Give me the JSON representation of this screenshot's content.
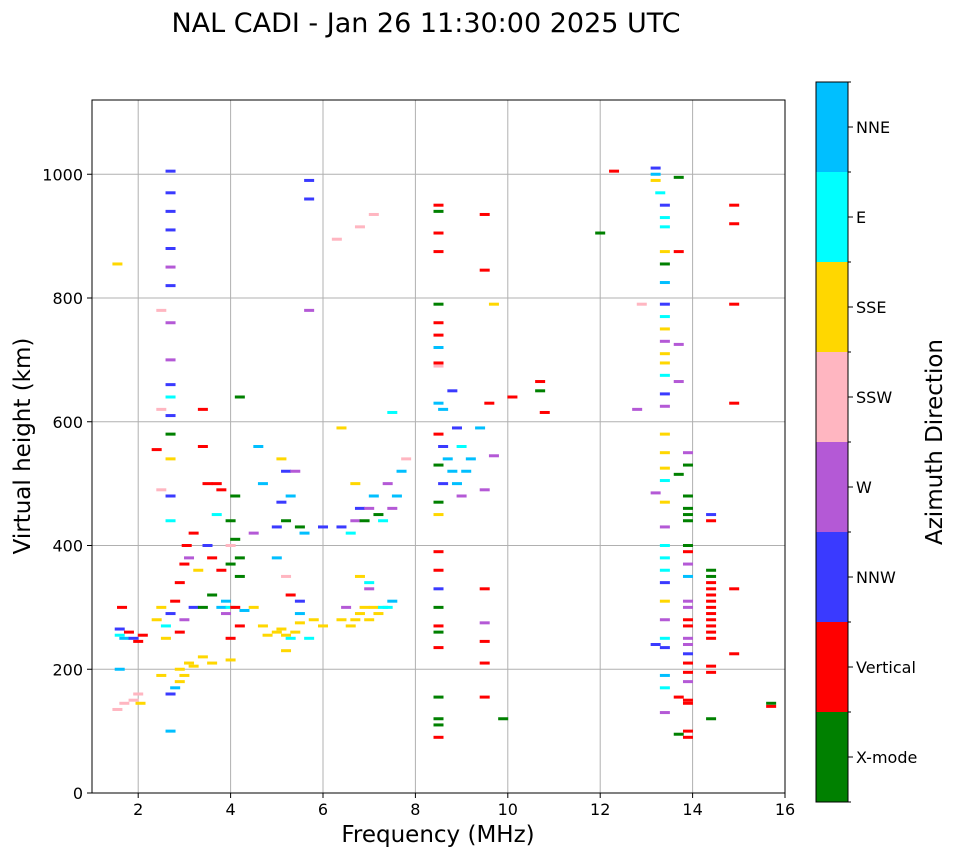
{
  "chart_data": {
    "type": "scatter",
    "title": "NAL CADI - Jan 26 11:30:00 2025 UTC",
    "xlabel": "Frequency (MHz)",
    "ylabel": "Virtual height (km)",
    "xlim": [
      1,
      16
    ],
    "ylim": [
      0,
      1120
    ],
    "xticks": [
      2,
      4,
      6,
      8,
      10,
      12,
      14,
      16
    ],
    "yticks": [
      0,
      200,
      400,
      600,
      800,
      1000
    ],
    "grid": true,
    "colorbar": {
      "title": "Azimuth Direction",
      "categories": [
        {
          "name": "X-mode",
          "color": "#008000"
        },
        {
          "name": "Vertical",
          "color": "#ff0000"
        },
        {
          "name": "NNW",
          "color": "#3a3aff"
        },
        {
          "name": "W",
          "color": "#b459d6"
        },
        {
          "name": "SSW",
          "color": "#ffb6c1"
        },
        {
          "name": "SSE",
          "color": "#ffd700"
        },
        {
          "name": "E",
          "color": "#00ffff"
        },
        {
          "name": "NNE",
          "color": "#00bfff"
        }
      ]
    },
    "echoes": [
      [
        1.6,
        265,
        "NNW"
      ],
      [
        1.6,
        255,
        "E"
      ],
      [
        1.7,
        250,
        "NNE"
      ],
      [
        1.8,
        260,
        "Vertical"
      ],
      [
        1.9,
        250,
        "NNW"
      ],
      [
        2.0,
        245,
        "Vertical"
      ],
      [
        2.1,
        255,
        "Vertical"
      ],
      [
        1.6,
        200,
        "NNE"
      ],
      [
        1.7,
        145,
        "SSW"
      ],
      [
        1.9,
        150,
        "SSW"
      ],
      [
        2.0,
        160,
        "SSW"
      ],
      [
        2.05,
        145,
        "SSE"
      ],
      [
        1.55,
        855,
        "SSE"
      ],
      [
        1.55,
        135,
        "SSW"
      ],
      [
        1.65,
        300,
        "Vertical"
      ],
      [
        2.4,
        280,
        "SSE"
      ],
      [
        2.5,
        300,
        "SSE"
      ],
      [
        2.6,
        270,
        "E"
      ],
      [
        2.7,
        290,
        "NNW"
      ],
      [
        2.8,
        310,
        "Vertical"
      ],
      [
        2.9,
        340,
        "Vertical"
      ],
      [
        3.0,
        370,
        "Vertical"
      ],
      [
        3.1,
        380,
        "W"
      ],
      [
        3.05,
        400,
        "Vertical"
      ],
      [
        3.2,
        420,
        "Vertical"
      ],
      [
        3.2,
        300,
        "NNW"
      ],
      [
        3.0,
        280,
        "W"
      ],
      [
        2.9,
        260,
        "Vertical"
      ],
      [
        2.6,
        250,
        "SSE"
      ],
      [
        3.3,
        360,
        "SSE"
      ],
      [
        3.4,
        300,
        "X-mode"
      ],
      [
        3.6,
        320,
        "X-mode"
      ],
      [
        3.8,
        300,
        "NNE"
      ],
      [
        3.9,
        290,
        "W"
      ],
      [
        4.0,
        300,
        "E"
      ],
      [
        3.9,
        310,
        "NNE"
      ],
      [
        2.9,
        200,
        "SSE"
      ],
      [
        3.0,
        190,
        "SSE"
      ],
      [
        3.1,
        210,
        "SSE"
      ],
      [
        3.2,
        205,
        "SSE"
      ],
      [
        3.4,
        220,
        "SSE"
      ],
      [
        3.6,
        210,
        "SSE"
      ],
      [
        4.0,
        215,
        "SSE"
      ],
      [
        2.5,
        190,
        "SSE"
      ],
      [
        2.8,
        170,
        "NNE"
      ],
      [
        2.9,
        180,
        "SSE"
      ],
      [
        4.1,
        300,
        "Vertical"
      ],
      [
        4.2,
        270,
        "Vertical"
      ],
      [
        4.0,
        250,
        "Vertical"
      ],
      [
        4.3,
        295,
        "NNE"
      ],
      [
        4.5,
        300,
        "SSE"
      ],
      [
        4.7,
        270,
        "SSE"
      ],
      [
        4.8,
        255,
        "SSE"
      ],
      [
        5.0,
        260,
        "SSE"
      ],
      [
        5.1,
        265,
        "SSE"
      ],
      [
        5.2,
        255,
        "SSE"
      ],
      [
        5.3,
        250,
        "E"
      ],
      [
        5.4,
        260,
        "SSE"
      ],
      [
        5.5,
        275,
        "SSE"
      ],
      [
        5.2,
        230,
        "SSE"
      ],
      [
        4.0,
        440,
        "X-mode"
      ],
      [
        4.1,
        410,
        "X-mode"
      ],
      [
        4.0,
        400,
        "SSW"
      ],
      [
        4.2,
        380,
        "X-mode"
      ],
      [
        4.2,
        350,
        "X-mode"
      ],
      [
        4.0,
        370,
        "X-mode"
      ],
      [
        4.1,
        480,
        "X-mode"
      ],
      [
        3.8,
        490,
        "Vertical"
      ],
      [
        3.7,
        500,
        "Vertical"
      ],
      [
        3.5,
        500,
        "Vertical"
      ],
      [
        3.7,
        450,
        "E"
      ],
      [
        3.6,
        380,
        "Vertical"
      ],
      [
        3.8,
        360,
        "Vertical"
      ],
      [
        3.5,
        400,
        "NNW"
      ],
      [
        3.4,
        560,
        "Vertical"
      ],
      [
        3.4,
        620,
        "Vertical"
      ],
      [
        4.2,
        640,
        "X-mode"
      ],
      [
        4.5,
        420,
        "W"
      ],
      [
        4.6,
        560,
        "NNE"
      ],
      [
        4.7,
        500,
        "NNE"
      ],
      [
        5.0,
        430,
        "NNW"
      ],
      [
        5.1,
        470,
        "NNW"
      ],
      [
        5.2,
        440,
        "X-mode"
      ],
      [
        5.3,
        480,
        "NNE"
      ],
      [
        5.5,
        430,
        "X-mode"
      ],
      [
        5.6,
        420,
        "NNE"
      ],
      [
        5.0,
        380,
        "NNE"
      ],
      [
        5.2,
        350,
        "SSW"
      ],
      [
        5.3,
        320,
        "Vertical"
      ],
      [
        5.5,
        310,
        "NNW"
      ],
      [
        5.5,
        290,
        "NNE"
      ],
      [
        5.8,
        280,
        "SSE"
      ],
      [
        6.0,
        270,
        "SSE"
      ],
      [
        5.7,
        250,
        "E"
      ],
      [
        5.1,
        540,
        "SSE"
      ],
      [
        5.2,
        520,
        "NNW"
      ],
      [
        5.4,
        520,
        "W"
      ],
      [
        5.7,
        780,
        "W"
      ],
      [
        5.7,
        990,
        "NNW"
      ],
      [
        5.7,
        960,
        "NNW"
      ],
      [
        6.0,
        430,
        "NNW"
      ],
      [
        6.4,
        280,
        "SSE"
      ],
      [
        6.5,
        300,
        "W"
      ],
      [
        6.6,
        270,
        "SSE"
      ],
      [
        6.7,
        280,
        "SSE"
      ],
      [
        6.8,
        290,
        "SSE"
      ],
      [
        6.9,
        300,
        "SSE"
      ],
      [
        7.0,
        280,
        "SSE"
      ],
      [
        7.1,
        300,
        "SSE"
      ],
      [
        7.2,
        290,
        "SSE"
      ],
      [
        7.3,
        300,
        "E"
      ],
      [
        6.8,
        350,
        "SSE"
      ],
      [
        7.0,
        340,
        "E"
      ],
      [
        7.0,
        330,
        "W"
      ],
      [
        7.5,
        310,
        "NNE"
      ],
      [
        7.4,
        300,
        "E"
      ],
      [
        6.4,
        430,
        "NNW"
      ],
      [
        6.6,
        420,
        "E"
      ],
      [
        6.7,
        440,
        "W"
      ],
      [
        6.8,
        460,
        "NNW"
      ],
      [
        6.9,
        440,
        "X-mode"
      ],
      [
        7.0,
        460,
        "W"
      ],
      [
        7.1,
        480,
        "NNE"
      ],
      [
        7.2,
        450,
        "X-mode"
      ],
      [
        7.3,
        440,
        "E"
      ],
      [
        7.4,
        500,
        "W"
      ],
      [
        7.5,
        460,
        "W"
      ],
      [
        7.6,
        480,
        "NNE"
      ],
      [
        7.7,
        520,
        "NNE"
      ],
      [
        7.8,
        540,
        "SSW"
      ],
      [
        6.7,
        500,
        "SSE"
      ],
      [
        6.4,
        590,
        "SSE"
      ],
      [
        6.3,
        895,
        "SSW"
      ],
      [
        6.8,
        915,
        "SSW"
      ],
      [
        7.1,
        935,
        "SSW"
      ],
      [
        7.5,
        615,
        "E"
      ],
      [
        8.5,
        580,
        "Vertical"
      ],
      [
        8.6,
        560,
        "NNW"
      ],
      [
        8.7,
        540,
        "NNE"
      ],
      [
        8.8,
        520,
        "NNE"
      ],
      [
        8.9,
        500,
        "NNE"
      ],
      [
        9.0,
        480,
        "W"
      ],
      [
        8.6,
        620,
        "NNE"
      ],
      [
        8.9,
        590,
        "NNW"
      ],
      [
        9.0,
        560,
        "E"
      ],
      [
        9.1,
        520,
        "NNE"
      ],
      [
        9.2,
        540,
        "NNE"
      ],
      [
        8.8,
        650,
        "NNW"
      ],
      [
        8.5,
        470,
        "X-mode"
      ],
      [
        8.5,
        450,
        "SSE"
      ],
      [
        8.6,
        500,
        "NNW"
      ],
      [
        8.5,
        530,
        "X-mode"
      ],
      [
        9.5,
        490,
        "W"
      ],
      [
        9.7,
        545,
        "W"
      ],
      [
        9.6,
        630,
        "Vertical"
      ],
      [
        9.4,
        590,
        "NNE"
      ],
      [
        8.5,
        950,
        "Vertical"
      ],
      [
        8.5,
        940,
        "X-mode"
      ],
      [
        8.5,
        905,
        "Vertical"
      ],
      [
        8.5,
        875,
        "Vertical"
      ],
      [
        8.5,
        790,
        "X-mode"
      ],
      [
        8.5,
        760,
        "Vertical"
      ],
      [
        8.5,
        740,
        "Vertical"
      ],
      [
        8.5,
        720,
        "NNE"
      ],
      [
        8.5,
        695,
        "Vertical"
      ],
      [
        8.5,
        690,
        "SSW"
      ],
      [
        8.5,
        630,
        "NNE"
      ],
      [
        8.5,
        390,
        "Vertical"
      ],
      [
        8.5,
        360,
        "Vertical"
      ],
      [
        8.5,
        330,
        "NNW"
      ],
      [
        8.5,
        300,
        "X-mode"
      ],
      [
        8.5,
        270,
        "Vertical"
      ],
      [
        8.5,
        260,
        "X-mode"
      ],
      [
        8.5,
        235,
        "Vertical"
      ],
      [
        8.5,
        155,
        "X-mode"
      ],
      [
        8.5,
        120,
        "X-mode"
      ],
      [
        8.5,
        110,
        "X-mode"
      ],
      [
        8.5,
        90,
        "Vertical"
      ],
      [
        9.5,
        935,
        "Vertical"
      ],
      [
        9.5,
        845,
        "Vertical"
      ],
      [
        9.5,
        330,
        "Vertical"
      ],
      [
        9.5,
        275,
        "W"
      ],
      [
        9.5,
        245,
        "Vertical"
      ],
      [
        9.5,
        210,
        "Vertical"
      ],
      [
        9.5,
        155,
        "Vertical"
      ],
      [
        9.7,
        790,
        "SSE"
      ],
      [
        9.9,
        120,
        "X-mode"
      ],
      [
        10.1,
        640,
        "Vertical"
      ],
      [
        10.7,
        665,
        "Vertical"
      ],
      [
        10.7,
        650,
        "X-mode"
      ],
      [
        10.8,
        615,
        "Vertical"
      ],
      [
        12.0,
        905,
        "X-mode"
      ],
      [
        12.3,
        1005,
        "Vertical"
      ],
      [
        13.2,
        1010,
        "NNW"
      ],
      [
        13.2,
        1000,
        "NNE"
      ],
      [
        13.2,
        990,
        "SSE"
      ],
      [
        13.3,
        970,
        "E"
      ],
      [
        13.4,
        950,
        "NNW"
      ],
      [
        13.4,
        930,
        "E"
      ],
      [
        13.4,
        915,
        "E"
      ],
      [
        13.4,
        875,
        "SSE"
      ],
      [
        13.4,
        855,
        "X-mode"
      ],
      [
        13.4,
        825,
        "NNE"
      ],
      [
        13.4,
        790,
        "NNW"
      ],
      [
        13.4,
        770,
        "E"
      ],
      [
        13.4,
        750,
        "SSE"
      ],
      [
        13.4,
        730,
        "W"
      ],
      [
        13.4,
        710,
        "SSE"
      ],
      [
        13.4,
        695,
        "SSE"
      ],
      [
        13.4,
        675,
        "E"
      ],
      [
        13.4,
        645,
        "NNW"
      ],
      [
        13.4,
        625,
        "W"
      ],
      [
        13.4,
        580,
        "SSE"
      ],
      [
        13.4,
        550,
        "SSE"
      ],
      [
        13.4,
        525,
        "SSE"
      ],
      [
        13.4,
        505,
        "E"
      ],
      [
        13.4,
        470,
        "SSE"
      ],
      [
        13.4,
        430,
        "W"
      ],
      [
        13.4,
        400,
        "E"
      ],
      [
        13.4,
        380,
        "E"
      ],
      [
        13.4,
        360,
        "E"
      ],
      [
        13.4,
        340,
        "NNW"
      ],
      [
        13.4,
        310,
        "SSE"
      ],
      [
        13.4,
        280,
        "W"
      ],
      [
        13.4,
        250,
        "E"
      ],
      [
        13.4,
        235,
        "NNW"
      ],
      [
        13.4,
        190,
        "NNE"
      ],
      [
        13.4,
        170,
        "E"
      ],
      [
        13.4,
        130,
        "W"
      ],
      [
        12.9,
        790,
        "SSW"
      ],
      [
        12.8,
        620,
        "W"
      ],
      [
        13.2,
        485,
        "W"
      ],
      [
        13.2,
        240,
        "NNW"
      ],
      [
        13.7,
        995,
        "X-mode"
      ],
      [
        13.7,
        875,
        "Vertical"
      ],
      [
        13.7,
        725,
        "W"
      ],
      [
        13.7,
        665,
        "W"
      ],
      [
        13.7,
        515,
        "X-mode"
      ],
      [
        13.7,
        155,
        "Vertical"
      ],
      [
        13.7,
        95,
        "X-mode"
      ],
      [
        13.9,
        550,
        "W"
      ],
      [
        13.9,
        530,
        "X-mode"
      ],
      [
        13.9,
        480,
        "X-mode"
      ],
      [
        13.9,
        460,
        "X-mode"
      ],
      [
        13.9,
        450,
        "X-mode"
      ],
      [
        13.9,
        440,
        "X-mode"
      ],
      [
        13.9,
        400,
        "X-mode"
      ],
      [
        13.9,
        390,
        "Vertical"
      ],
      [
        13.9,
        370,
        "W"
      ],
      [
        13.9,
        350,
        "NNE"
      ],
      [
        13.9,
        310,
        "W"
      ],
      [
        13.9,
        300,
        "W"
      ],
      [
        13.9,
        280,
        "Vertical"
      ],
      [
        13.9,
        270,
        "Vertical"
      ],
      [
        13.9,
        250,
        "W"
      ],
      [
        13.9,
        240,
        "W"
      ],
      [
        13.9,
        225,
        "NNW"
      ],
      [
        13.9,
        210,
        "Vertical"
      ],
      [
        13.9,
        195,
        "Vertical"
      ],
      [
        13.9,
        180,
        "W"
      ],
      [
        13.9,
        150,
        "Vertical"
      ],
      [
        13.9,
        145,
        "Vertical"
      ],
      [
        13.9,
        100,
        "Vertical"
      ],
      [
        13.9,
        90,
        "Vertical"
      ],
      [
        14.4,
        450,
        "NNW"
      ],
      [
        14.4,
        440,
        "Vertical"
      ],
      [
        14.4,
        360,
        "X-mode"
      ],
      [
        14.4,
        350,
        "X-mode"
      ],
      [
        14.4,
        340,
        "Vertical"
      ],
      [
        14.4,
        330,
        "Vertical"
      ],
      [
        14.4,
        320,
        "Vertical"
      ],
      [
        14.4,
        310,
        "Vertical"
      ],
      [
        14.4,
        300,
        "Vertical"
      ],
      [
        14.4,
        290,
        "Vertical"
      ],
      [
        14.4,
        280,
        "Vertical"
      ],
      [
        14.4,
        270,
        "Vertical"
      ],
      [
        14.4,
        260,
        "Vertical"
      ],
      [
        14.4,
        250,
        "Vertical"
      ],
      [
        14.4,
        205,
        "Vertical"
      ],
      [
        14.4,
        195,
        "Vertical"
      ],
      [
        14.4,
        120,
        "X-mode"
      ],
      [
        14.9,
        950,
        "Vertical"
      ],
      [
        14.9,
        920,
        "Vertical"
      ],
      [
        14.9,
        790,
        "Vertical"
      ],
      [
        14.9,
        630,
        "Vertical"
      ],
      [
        14.9,
        330,
        "Vertical"
      ],
      [
        14.9,
        225,
        "Vertical"
      ],
      [
        15.7,
        145,
        "X-mode"
      ],
      [
        15.7,
        140,
        "Vertical"
      ],
      [
        2.7,
        1005,
        "NNW"
      ],
      [
        2.7,
        970,
        "NNW"
      ],
      [
        2.7,
        940,
        "NNW"
      ],
      [
        2.7,
        910,
        "NNW"
      ],
      [
        2.7,
        880,
        "NNW"
      ],
      [
        2.7,
        850,
        "W"
      ],
      [
        2.7,
        820,
        "NNW"
      ],
      [
        2.7,
        760,
        "W"
      ],
      [
        2.7,
        700,
        "W"
      ],
      [
        2.7,
        660,
        "NNW"
      ],
      [
        2.7,
        640,
        "E"
      ],
      [
        2.7,
        610,
        "NNW"
      ],
      [
        2.7,
        580,
        "X-mode"
      ],
      [
        2.7,
        540,
        "SSE"
      ],
      [
        2.7,
        480,
        "NNW"
      ],
      [
        2.7,
        440,
        "E"
      ],
      [
        2.7,
        160,
        "NNW"
      ],
      [
        2.7,
        100,
        "NNE"
      ],
      [
        2.5,
        780,
        "SSW"
      ],
      [
        2.5,
        620,
        "SSW"
      ],
      [
        2.5,
        490,
        "SSW"
      ],
      [
        2.4,
        555,
        "Vertical"
      ]
    ]
  }
}
